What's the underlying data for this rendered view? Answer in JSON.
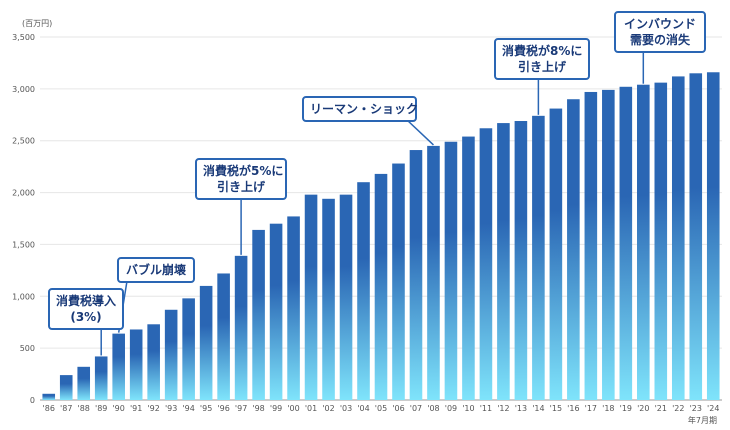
{
  "chart_data": {
    "type": "bar",
    "unit_label": "(百万円)",
    "x_suffix": "年7月期",
    "categories": [
      "'86",
      "'87",
      "'88",
      "'89",
      "'90",
      "'91",
      "'92",
      "'93",
      "'94",
      "'95",
      "'96",
      "'97",
      "'98",
      "'99",
      "'00",
      "'01",
      "'02",
      "'03",
      "'04",
      "'05",
      "'06",
      "'07",
      "'08",
      "'09",
      "'10",
      "'11",
      "'12",
      "'13",
      "'14",
      "'15",
      "'16",
      "'17",
      "'18",
      "'19",
      "'20",
      "'21",
      "'22",
      "'23",
      "'24"
    ],
    "values": [
      60,
      240,
      320,
      420,
      640,
      680,
      730,
      870,
      980,
      1100,
      1220,
      1390,
      1640,
      1700,
      1770,
      1980,
      1940,
      1980,
      2100,
      2180,
      2280,
      2410,
      2450,
      2490,
      2540,
      2620,
      2670,
      2690,
      2740,
      2810,
      2900,
      2970,
      2990,
      3020,
      3040,
      3060,
      3120,
      3150,
      3160
    ],
    "y_ticks": [
      "0",
      "500",
      "1,000",
      "1,500",
      "2,000",
      "2,500",
      "3,000",
      "3,500"
    ],
    "ylim": [
      0,
      3500
    ],
    "grid": true,
    "colors": {
      "bar_top": "#2a66b4",
      "bar_bottom": "#7fe4fb",
      "callout_border": "#2a66b4",
      "callout_text": "#1a3a78"
    },
    "annotations": [
      {
        "lines": [
          "消費税導入",
          "(3%)"
        ],
        "category": "'89"
      },
      {
        "lines": [
          "バブル崩壊"
        ],
        "category": "'90"
      },
      {
        "lines": [
          "消費税が5%に",
          "引き上げ"
        ],
        "category": "'97"
      },
      {
        "lines": [
          "リーマン・ショック"
        ],
        "category": "'08"
      },
      {
        "lines": [
          "消費税が8%に",
          "引き上げ"
        ],
        "category": "'14"
      },
      {
        "lines": [
          "インバウンド",
          "需要の消失"
        ],
        "category": "'20"
      }
    ]
  }
}
